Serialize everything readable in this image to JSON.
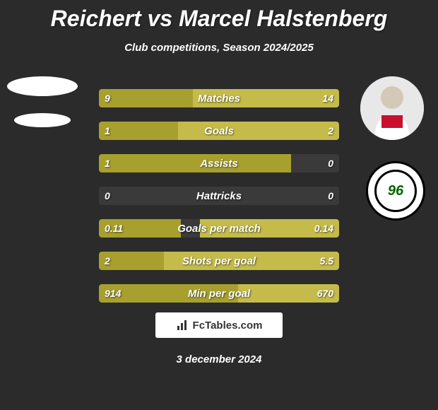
{
  "title": "Reichert vs Marcel Halstenberg",
  "subtitle": "Club competitions, Season 2024/2025",
  "date": "3 december 2024",
  "footer_brand": "FcTables.com",
  "colors": {
    "background": "#2b2b2b",
    "bar_left": "#a8a02e",
    "bar_right": "#c5bb4a",
    "bar_track": "#3a3a3a",
    "text": "#ffffff"
  },
  "club_logo_text": "96",
  "stats": [
    {
      "label": "Matches",
      "left_val": "9",
      "right_val": "14",
      "left_pct": 39,
      "right_pct": 61
    },
    {
      "label": "Goals",
      "left_val": "1",
      "right_val": "2",
      "left_pct": 33,
      "right_pct": 67
    },
    {
      "label": "Assists",
      "left_val": "1",
      "right_val": "0",
      "left_pct": 80,
      "right_pct": 0
    },
    {
      "label": "Hattricks",
      "left_val": "0",
      "right_val": "0",
      "left_pct": 0,
      "right_pct": 0
    },
    {
      "label": "Goals per match",
      "left_val": "0.11",
      "right_val": "0.14",
      "left_pct": 34,
      "right_pct": 58
    },
    {
      "label": "Shots per goal",
      "left_val": "2",
      "right_val": "5.5",
      "left_pct": 27,
      "right_pct": 73
    },
    {
      "label": "Min per goal",
      "left_val": "914",
      "right_val": "670",
      "left_pct": 58,
      "right_pct": 42
    }
  ],
  "typography": {
    "title_fontsize": 32,
    "subtitle_fontsize": 15,
    "bar_label_fontsize": 15,
    "bar_value_fontsize": 14
  }
}
